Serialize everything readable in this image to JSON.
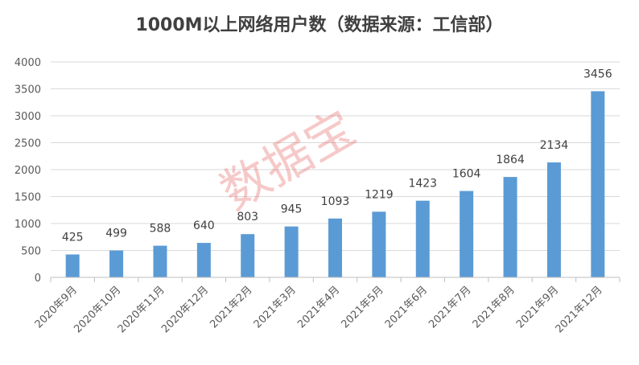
{
  "chart_data": {
    "type": "bar",
    "title": "1000M以上网络用户数（数据来源：工信部）",
    "categories": [
      "2020年9月",
      "2020年10月",
      "2020年11月",
      "2020年12月",
      "2021年2月",
      "2021年3月",
      "2021年4月",
      "2021年5月",
      "2021年6月",
      "2021年7月",
      "2021年8月",
      "2021年9月",
      "2021年12月"
    ],
    "values": [
      425,
      499,
      588,
      640,
      803,
      945,
      1093,
      1219,
      1423,
      1604,
      1864,
      2134,
      3456
    ],
    "ylim": [
      0,
      4000
    ],
    "yticks": [
      0,
      500,
      1000,
      1500,
      2000,
      2500,
      3000,
      3500,
      4000
    ],
    "grid": true,
    "legend": "none",
    "bar_color": "#5b9bd5"
  },
  "watermark": "数据宝"
}
